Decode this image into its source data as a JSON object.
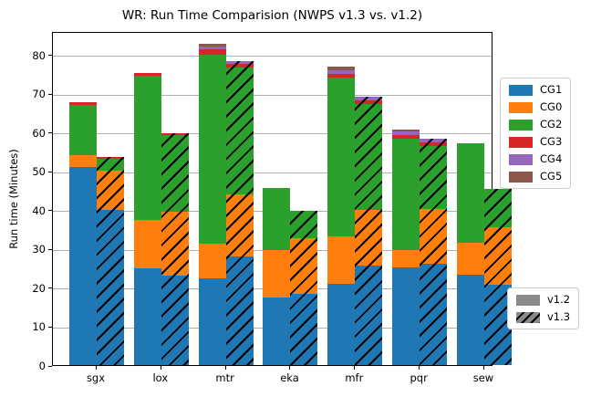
{
  "title": "WR: Run Time Comparision (NWPS v1.3 vs. v1.2)",
  "ylabel": "Run time (Minutes)",
  "chart_data": {
    "type": "bar",
    "stacked": true,
    "grouped_by": [
      "v1.2",
      "v1.3"
    ],
    "title": "WR: Run Time Comparision (NWPS v1.3 vs. v1.2)",
    "xlabel": "",
    "ylabel": "Run time (Minutes)",
    "categories": [
      "sgx",
      "lox",
      "mtr",
      "eka",
      "mfr",
      "pqr",
      "sew"
    ],
    "yticks": [
      0,
      10,
      20,
      30,
      40,
      50,
      60,
      70,
      80
    ],
    "ylim": [
      0,
      86
    ],
    "grid": "horizontal",
    "legend_position": "right",
    "series": [
      {
        "name": "CG1",
        "color": "#1f77b4",
        "values": {
          "v1.2": [
            51.0,
            25.0,
            22.3,
            17.4,
            21.0,
            25.2,
            23.2
          ],
          "v1.3": [
            40.0,
            23.0,
            28.0,
            18.4,
            25.7,
            26.1,
            20.7
          ]
        }
      },
      {
        "name": "CG0",
        "color": "#ff7f0e",
        "values": {
          "v1.2": [
            3.0,
            12.3,
            9.0,
            12.3,
            12.2,
            4.3,
            8.2
          ],
          "v1.3": [
            10.0,
            16.4,
            16.0,
            14.2,
            14.3,
            14.1,
            14.8
          ]
        }
      },
      {
        "name": "CG2",
        "color": "#2ca02c",
        "values": {
          "v1.2": [
            13.0,
            37.2,
            48.7,
            15.8,
            40.8,
            28.8,
            25.8
          ],
          "v1.3": [
            3.2,
            19.8,
            32.7,
            7.0,
            27.3,
            16.2,
            9.9
          ]
        }
      },
      {
        "name": "CG3",
        "color": "#d62728",
        "values": {
          "v1.2": [
            0.7,
            0.7,
            1.2,
            0,
            1.0,
            0.9,
            0
          ],
          "v1.3": [
            0.4,
            0.5,
            0.9,
            0,
            0.9,
            0.9,
            0
          ]
        }
      },
      {
        "name": "CG4",
        "color": "#9467bd",
        "values": {
          "v1.2": [
            0,
            0,
            0.8,
            0,
            0.9,
            0.9,
            0
          ],
          "v1.3": [
            0,
            0,
            0.7,
            0,
            0.8,
            1.0,
            0
          ]
        }
      },
      {
        "name": "CG5",
        "color": "#8c564b",
        "values": {
          "v1.2": [
            0,
            0,
            0.6,
            0,
            0.9,
            0.5,
            0
          ],
          "v1.3": [
            0,
            0,
            0,
            0,
            0,
            0,
            0
          ]
        }
      }
    ],
    "totals": {
      "v1.2": [
        67.7,
        75.2,
        82.6,
        45.5,
        76.8,
        60.6,
        57.2
      ],
      "v1.3": [
        53.6,
        59.7,
        78.3,
        39.6,
        69.0,
        58.3,
        45.4
      ]
    }
  },
  "legends": {
    "series_legend": {
      "items": [
        {
          "label": "CG1",
          "color": "#1f77b4"
        },
        {
          "label": "CG0",
          "color": "#ff7f0e"
        },
        {
          "label": "CG2",
          "color": "#2ca02c"
        },
        {
          "label": "CG3",
          "color": "#d62728"
        },
        {
          "label": "CG4",
          "color": "#9467bd"
        },
        {
          "label": "CG5",
          "color": "#8c564b"
        }
      ]
    },
    "version_legend": {
      "swatch_color": "#8a8a8a",
      "items": [
        {
          "label": "v1.2",
          "hatch": false
        },
        {
          "label": "v1.3",
          "hatch": true
        }
      ]
    }
  }
}
